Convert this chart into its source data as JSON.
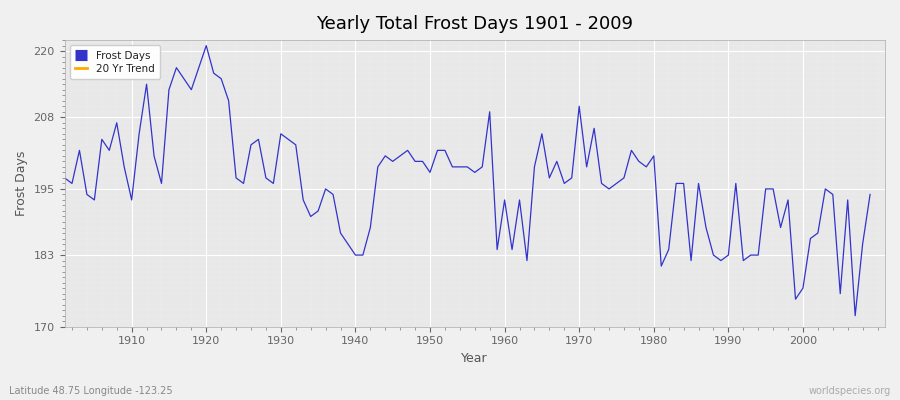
{
  "title": "Yearly Total Frost Days 1901 - 2009",
  "xlabel": "Year",
  "ylabel": "Frost Days",
  "subtitle": "Latitude 48.75 Longitude -123.25",
  "watermark": "worldspecies.org",
  "ylim": [
    170,
    222
  ],
  "yticks": [
    170,
    183,
    195,
    208,
    220
  ],
  "line_color": "#3333cc",
  "trend_color": "#ffaa00",
  "fig_bg": "#f0f0f0",
  "plot_bg": "#e8e8e8",
  "legend_frost": "Frost Days",
  "legend_trend": "20 Yr Trend",
  "years": [
    1901,
    1902,
    1903,
    1904,
    1905,
    1906,
    1907,
    1908,
    1909,
    1910,
    1911,
    1912,
    1913,
    1914,
    1915,
    1916,
    1917,
    1918,
    1919,
    1920,
    1921,
    1922,
    1923,
    1924,
    1925,
    1926,
    1927,
    1928,
    1929,
    1930,
    1931,
    1932,
    1933,
    1934,
    1935,
    1936,
    1937,
    1938,
    1939,
    1940,
    1941,
    1942,
    1943,
    1944,
    1945,
    1946,
    1947,
    1948,
    1949,
    1950,
    1951,
    1952,
    1953,
    1954,
    1955,
    1956,
    1957,
    1958,
    1959,
    1960,
    1961,
    1962,
    1963,
    1964,
    1965,
    1966,
    1967,
    1968,
    1969,
    1970,
    1971,
    1972,
    1973,
    1974,
    1975,
    1976,
    1977,
    1978,
    1979,
    1980,
    1981,
    1982,
    1983,
    1984,
    1985,
    1986,
    1987,
    1988,
    1989,
    1990,
    1991,
    1992,
    1993,
    1994,
    1995,
    1996,
    1997,
    1998,
    1999,
    2000,
    2001,
    2002,
    2003,
    2004,
    2005,
    2006,
    2007,
    2008,
    2009
  ],
  "frost_days": [
    197,
    196,
    202,
    194,
    193,
    204,
    202,
    207,
    199,
    193,
    205,
    214,
    201,
    196,
    213,
    217,
    215,
    213,
    217,
    221,
    216,
    215,
    211,
    197,
    196,
    203,
    204,
    197,
    196,
    205,
    204,
    203,
    193,
    190,
    191,
    195,
    194,
    187,
    185,
    183,
    183,
    188,
    199,
    201,
    200,
    201,
    202,
    200,
    200,
    198,
    202,
    202,
    199,
    199,
    199,
    198,
    199,
    209,
    184,
    193,
    184,
    193,
    182,
    199,
    205,
    197,
    200,
    196,
    197,
    210,
    199,
    206,
    196,
    195,
    196,
    197,
    202,
    200,
    199,
    201,
    181,
    184,
    196,
    196,
    182,
    196,
    188,
    183,
    182,
    183,
    196,
    182,
    183,
    183,
    195,
    195,
    188,
    193,
    175,
    177,
    186,
    187,
    195,
    194,
    176,
    193,
    172,
    185,
    194
  ]
}
